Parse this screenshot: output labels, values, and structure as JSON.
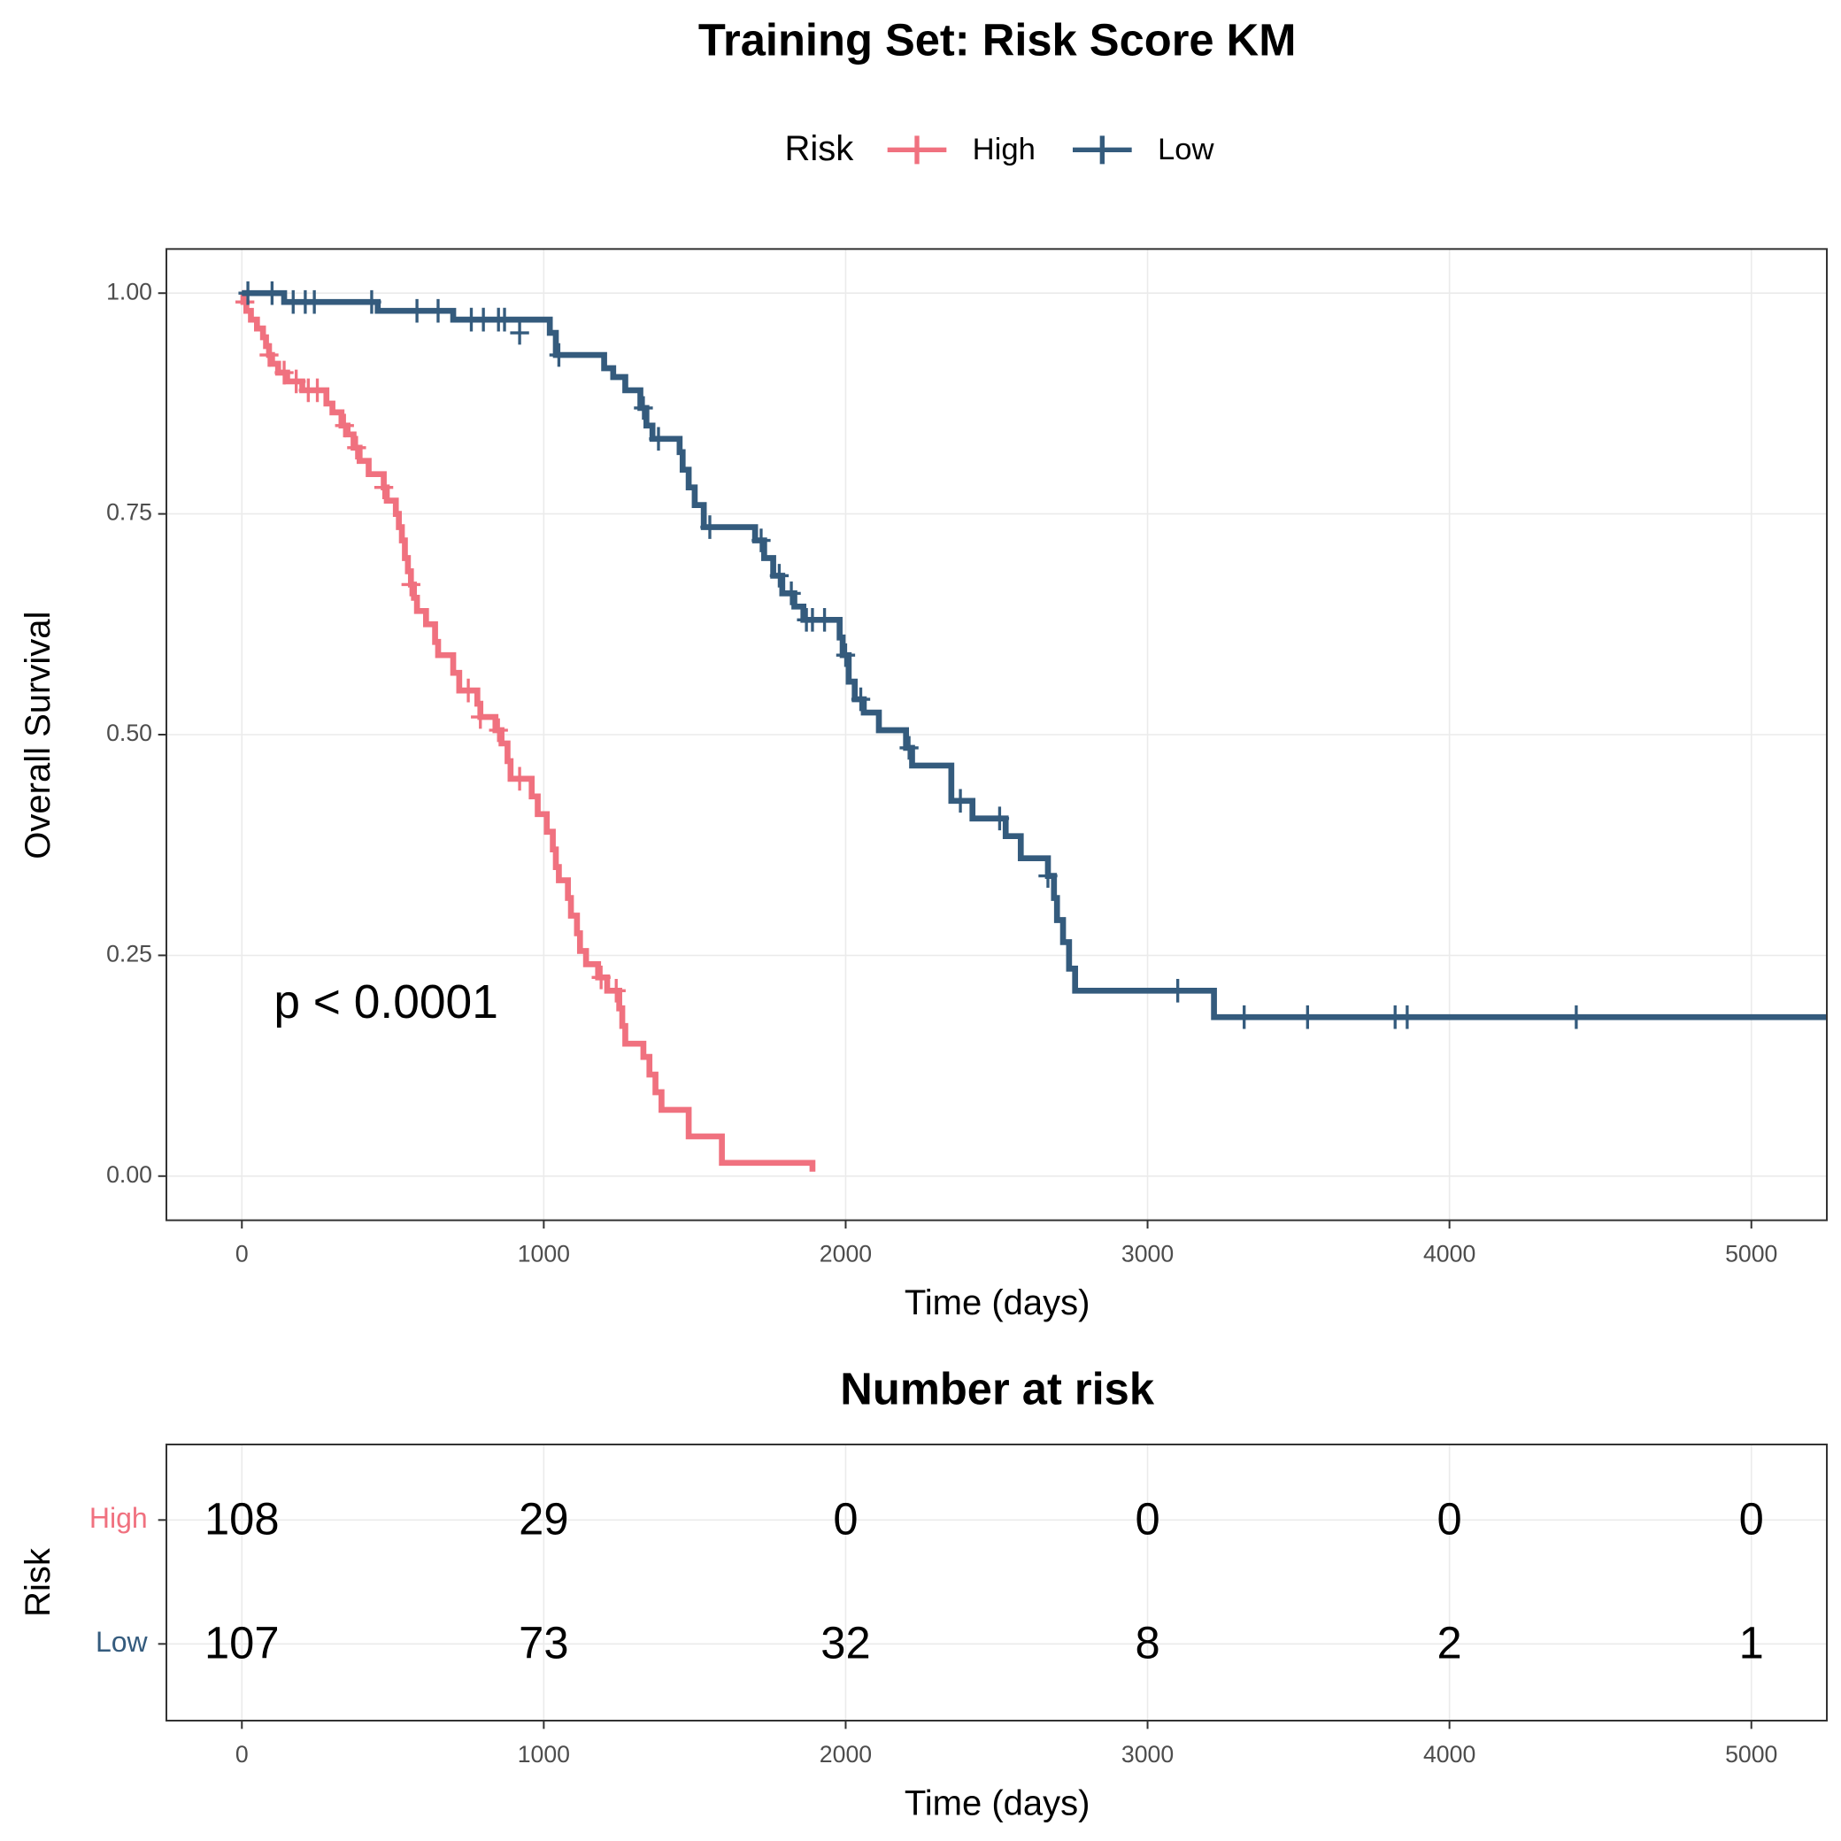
{
  "chart_data": [
    {
      "type": "step",
      "title": "Training Set: Risk Score KM",
      "legend_title": "Risk",
      "xlabel": "Time (days)",
      "ylabel": "Overall Survival",
      "annotation": "p < 0.0001",
      "xlim": [
        -250,
        5250
      ],
      "ylim": [
        -0.05,
        1.05
      ],
      "xticks": [
        0,
        1000,
        2000,
        3000,
        4000,
        5000
      ],
      "yticks": [
        {
          "value": 0,
          "label": "0.00"
        },
        {
          "value": 0.25,
          "label": "0.25"
        },
        {
          "value": 0.5,
          "label": "0.50"
        },
        {
          "value": 0.75,
          "label": "0.75"
        },
        {
          "value": 1,
          "label": "1.00"
        }
      ],
      "grid": true,
      "series": [
        {
          "name": "High",
          "color": "#f0717f",
          "x": [
            0,
            5,
            15,
            30,
            50,
            70,
            80,
            90,
            100,
            120,
            150,
            200,
            280,
            300,
            330,
            350,
            370,
            390,
            420,
            470,
            480,
            510,
            520,
            530,
            540,
            550,
            560,
            570,
            580,
            610,
            640,
            650,
            700,
            720,
            780,
            790,
            840,
            860,
            880,
            890,
            960,
            980,
            1010,
            1030,
            1040,
            1050,
            1080,
            1090,
            1110,
            1120,
            1140,
            1180,
            1210,
            1250,
            1260,
            1270,
            1330,
            1350,
            1370,
            1390,
            1480,
            1590,
            1890,
            1890
          ],
          "values": [
            1.0,
            0.99,
            0.98,
            0.97,
            0.96,
            0.95,
            0.94,
            0.93,
            0.92,
            0.91,
            0.9,
            0.89,
            0.875,
            0.865,
            0.85,
            0.84,
            0.825,
            0.81,
            0.795,
            0.78,
            0.765,
            0.75,
            0.735,
            0.72,
            0.7,
            0.685,
            0.67,
            0.655,
            0.64,
            0.625,
            0.605,
            0.59,
            0.57,
            0.55,
            0.535,
            0.52,
            0.505,
            0.49,
            0.47,
            0.45,
            0.43,
            0.41,
            0.39,
            0.37,
            0.35,
            0.335,
            0.315,
            0.295,
            0.275,
            0.255,
            0.24,
            0.225,
            0.21,
            0.19,
            0.17,
            0.15,
            0.135,
            0.115,
            0.095,
            0.075,
            0.045,
            0.015,
            0.015,
            0.005
          ],
          "censor_x": [
            10,
            90,
            140,
            180,
            220,
            250,
            340,
            380,
            470,
            560,
            750,
            790,
            850,
            920,
            1190,
            1240
          ],
          "censor_values": [
            0.99,
            0.93,
            0.91,
            0.9,
            0.89,
            0.89,
            0.85,
            0.825,
            0.78,
            0.67,
            0.55,
            0.52,
            0.505,
            0.45,
            0.225,
            0.21
          ]
        },
        {
          "name": "Low",
          "color": "#345b7d",
          "x": [
            0,
            140,
            450,
            700,
            1020,
            1040,
            1200,
            1230,
            1270,
            1320,
            1340,
            1360,
            1450,
            1460,
            1480,
            1500,
            1530,
            1700,
            1730,
            1760,
            1790,
            1830,
            1860,
            1980,
            1990,
            2010,
            2030,
            2060,
            2110,
            2200,
            2220,
            2350,
            2420,
            2530,
            2580,
            2670,
            2690,
            2700,
            2720,
            2740,
            2760,
            3220,
            5250
          ],
          "values": [
            1.0,
            0.99,
            0.98,
            0.97,
            0.955,
            0.93,
            0.915,
            0.905,
            0.89,
            0.87,
            0.85,
            0.835,
            0.82,
            0.8,
            0.78,
            0.76,
            0.735,
            0.72,
            0.7,
            0.68,
            0.66,
            0.645,
            0.63,
            0.61,
            0.59,
            0.56,
            0.54,
            0.525,
            0.505,
            0.485,
            0.465,
            0.425,
            0.405,
            0.385,
            0.36,
            0.34,
            0.315,
            0.29,
            0.265,
            0.235,
            0.21,
            0.18,
            0.18
          ],
          "censor_x": [
            20,
            100,
            170,
            210,
            240,
            430,
            580,
            650,
            760,
            800,
            850,
            870,
            920,
            1050,
            1330,
            1380,
            1550,
            1720,
            1780,
            1820,
            1870,
            1890,
            1930,
            2000,
            2050,
            2210,
            2380,
            2510,
            2670,
            3100,
            3320,
            3530,
            3820,
            3860,
            4420
          ],
          "censor_values": [
            1.0,
            1.0,
            0.99,
            0.99,
            0.99,
            0.99,
            0.98,
            0.98,
            0.97,
            0.97,
            0.97,
            0.97,
            0.955,
            0.93,
            0.87,
            0.835,
            0.735,
            0.72,
            0.68,
            0.66,
            0.63,
            0.63,
            0.63,
            0.59,
            0.54,
            0.485,
            0.425,
            0.405,
            0.34,
            0.21,
            0.18,
            0.18,
            0.18,
            0.18,
            0.18
          ]
        }
      ]
    },
    {
      "type": "table",
      "title": "Number at risk",
      "xlabel": "Time (days)",
      "ylabel": "Risk",
      "xlim": [
        -250,
        5250
      ],
      "xticks": [
        0,
        1000,
        2000,
        3000,
        4000,
        5000
      ],
      "grid": true,
      "series": [
        {
          "name": "High",
          "color": "#f0717f",
          "values": [
            108,
            29,
            0,
            0,
            0,
            0
          ]
        },
        {
          "name": "Low",
          "color": "#345b7d",
          "values": [
            107,
            73,
            32,
            8,
            2,
            1
          ]
        }
      ]
    }
  ]
}
